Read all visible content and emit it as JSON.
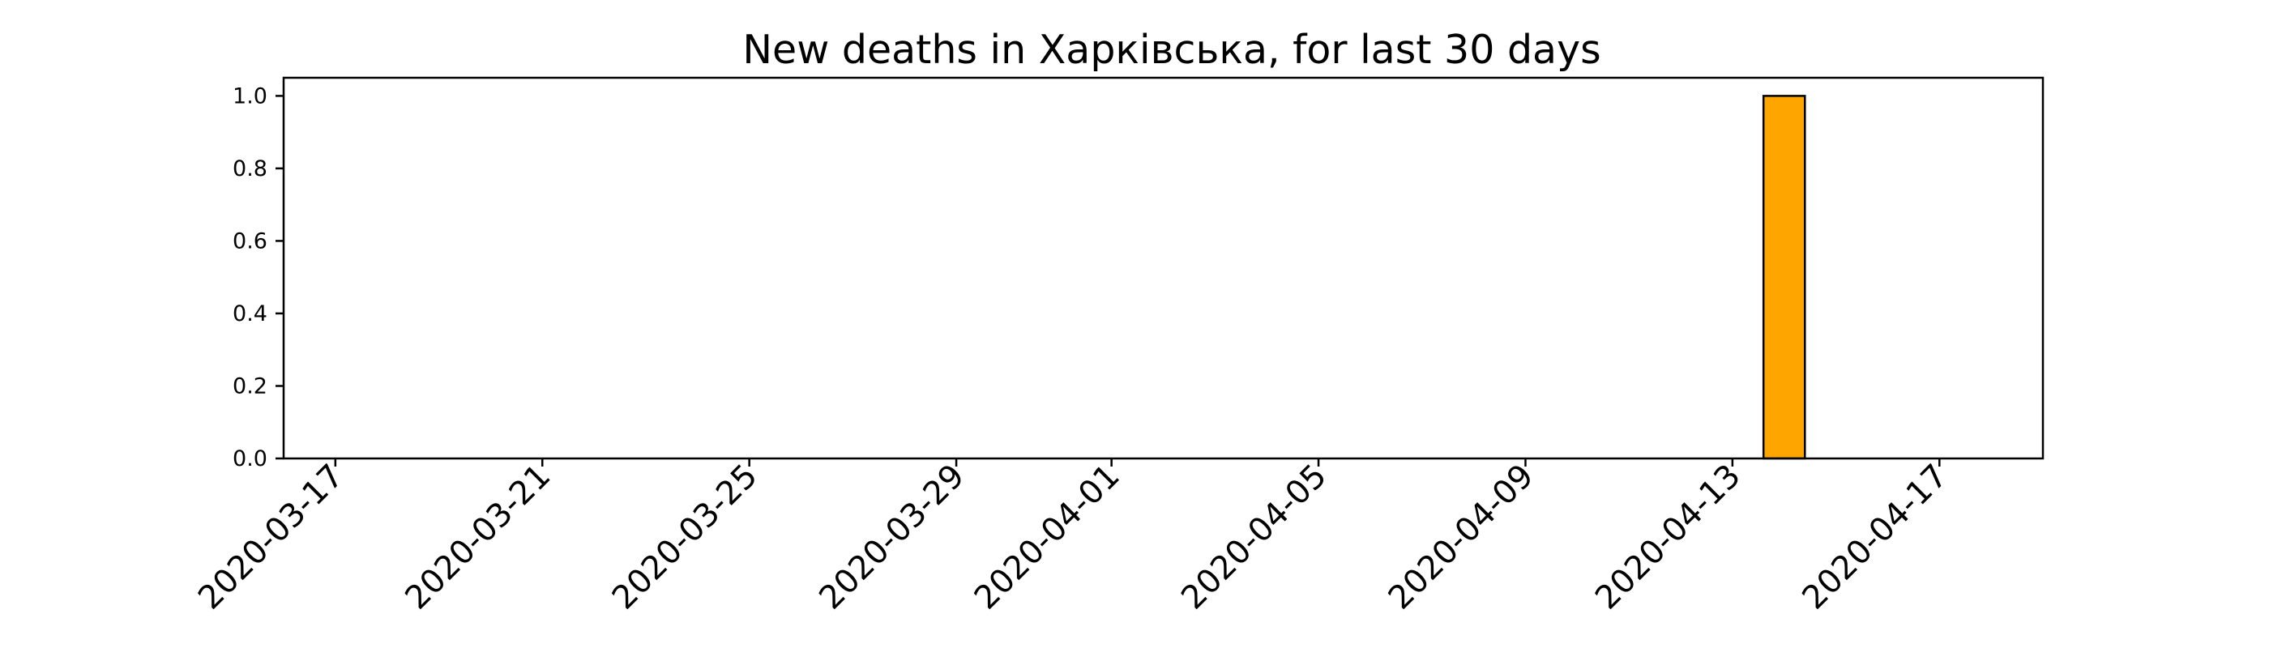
{
  "chart_data": {
    "type": "bar",
    "title": "New deaths in Харківська, for last 30 days",
    "xlabel": "",
    "ylabel": "",
    "x_axis": "date",
    "xlim": [
      "2020-03-16",
      "2020-04-19"
    ],
    "ylim": [
      0,
      1.05
    ],
    "xticks": [
      "2020-03-17",
      "2020-03-21",
      "2020-03-25",
      "2020-03-29",
      "2020-04-01",
      "2020-04-05",
      "2020-04-09",
      "2020-04-13",
      "2020-04-17"
    ],
    "yticks": [
      "0.0",
      "0.2",
      "0.4",
      "0.6",
      "0.8",
      "1.0"
    ],
    "grid": false,
    "legend": "none",
    "bar_color": "#ffa500",
    "bar_edge_color": "#000000",
    "dates": [
      "2020-03-17",
      "2020-03-18",
      "2020-03-19",
      "2020-03-20",
      "2020-03-21",
      "2020-03-22",
      "2020-03-23",
      "2020-03-24",
      "2020-03-25",
      "2020-03-26",
      "2020-03-27",
      "2020-03-28",
      "2020-03-29",
      "2020-03-30",
      "2020-03-31",
      "2020-04-01",
      "2020-04-02",
      "2020-04-03",
      "2020-04-04",
      "2020-04-05",
      "2020-04-06",
      "2020-04-07",
      "2020-04-08",
      "2020-04-09",
      "2020-04-10",
      "2020-04-11",
      "2020-04-12",
      "2020-04-13",
      "2020-04-14",
      "2020-04-15",
      "2020-04-16",
      "2020-04-17",
      "2020-04-18"
    ],
    "values": [
      0,
      0,
      0,
      0,
      0,
      0,
      0,
      0,
      0,
      0,
      0,
      0,
      0,
      0,
      0,
      0,
      0,
      0,
      0,
      0,
      0,
      0,
      0,
      0,
      0,
      0,
      0,
      0,
      1,
      0,
      0,
      0,
      0
    ]
  }
}
